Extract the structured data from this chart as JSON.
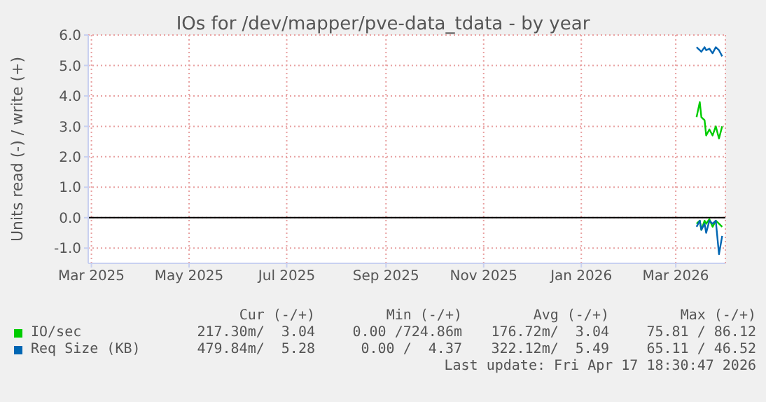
{
  "chart_data": {
    "type": "line",
    "title": "IOs for /dev/mapper/pve-data_tdata - by year",
    "ylabel": "Units read (-) / write (+)",
    "x": [
      "2026-03-14",
      "2026-03-16",
      "2026-03-17",
      "2026-03-19",
      "2026-03-20",
      "2026-03-22",
      "2026-03-24",
      "2026-03-26",
      "2026-03-28",
      "2026-03-30"
    ],
    "series": [
      {
        "name": "IO/sec",
        "color": "#00cc00",
        "values": [
          3.3,
          3.8,
          3.3,
          3.2,
          2.7,
          2.9,
          2.7,
          3.0,
          2.6,
          3.0
        ]
      },
      {
        "color": "#00cc00",
        "values": [
          -0.2,
          -0.1,
          -0.4,
          -0.1,
          -0.2,
          -0.05,
          -0.3,
          -0.1,
          -0.2,
          -0.3
        ]
      },
      {
        "name": "Req Size (KB)",
        "color": "#0066b3",
        "values": [
          5.6,
          5.5,
          5.45,
          5.6,
          5.5,
          5.55,
          5.4,
          5.6,
          5.5,
          5.3
        ]
      },
      {
        "color": "#0066b3",
        "values": [
          -0.3,
          -0.1,
          -0.4,
          -0.2,
          -0.5,
          -0.1,
          -0.2,
          -0.1,
          -1.2,
          -0.6
        ]
      }
    ],
    "xlim": [
      "2025-02-27",
      "2026-04-01"
    ],
    "xticks": [
      {
        "value": "2025-03-01",
        "label": "Mar 2025"
      },
      {
        "value": "2025-05-01",
        "label": "May 2025"
      },
      {
        "value": "2025-07-01",
        "label": "Jul 2025"
      },
      {
        "value": "2025-09-01",
        "label": "Sep 2025"
      },
      {
        "value": "2025-11-01",
        "label": "Nov 2025"
      },
      {
        "value": "2026-01-01",
        "label": "Jan 2026"
      },
      {
        "value": "2026-03-01",
        "label": "Mar 2026"
      }
    ],
    "ylim": [
      -1.5,
      6
    ],
    "yticks": [
      {
        "value": -1,
        "label": "-1.0"
      },
      {
        "value": 0,
        "label": "0.0"
      },
      {
        "value": 1,
        "label": "1.0"
      },
      {
        "value": 2,
        "label": "2.0"
      },
      {
        "value": 3,
        "label": "3.0"
      },
      {
        "value": 4,
        "label": "4.0"
      },
      {
        "value": 5,
        "label": "5.0"
      },
      {
        "value": 6,
        "label": "6.0"
      }
    ],
    "ref_lines": [
      {
        "axis": "y",
        "value": 0,
        "color": "#000000"
      }
    ],
    "grid": true,
    "legend": "bottom",
    "annotations": [
      "Cur (-/+)",
      "Min (-/+)",
      "Avg (-/+)",
      "Max (-/+)",
      "217.30m/  3.04",
      "0.00 /724.86m",
      "176.72m/  3.04",
      "75.81 / 86.12",
      "479.84m/  5.28",
      "0.00 /  4.37",
      "322.12m/  5.49",
      "65.11 / 46.52",
      "Last update: Fri Apr 17 18:30:47 2026"
    ]
  }
}
